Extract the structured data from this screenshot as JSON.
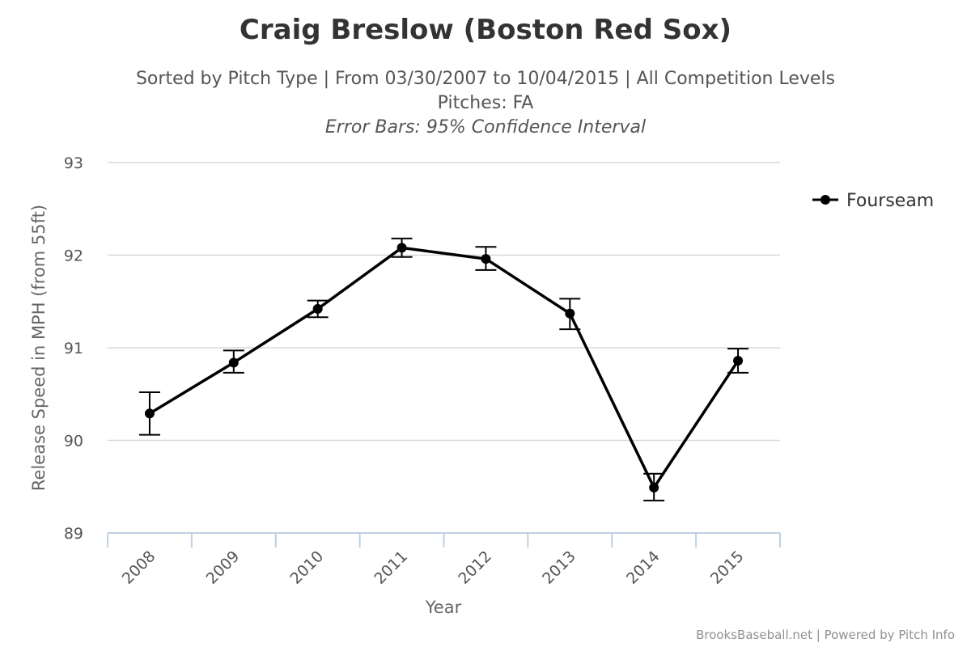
{
  "chart_data": {
    "type": "line",
    "title": "Craig Breslow (Boston Red Sox)",
    "subtitle_lines": [
      "Sorted by Pitch Type | From 03/30/2007 to 10/04/2015 | All Competition Levels",
      "Pitches: FA"
    ],
    "subtitle_note": "Error Bars: 95% Confidence Interval",
    "xlabel": "Year",
    "ylabel": "Release Speed in MPH (from 55ft)",
    "categories": [
      "2008",
      "2009",
      "2010",
      "2011",
      "2012",
      "2013",
      "2014",
      "2015"
    ],
    "ylim": [
      89,
      93
    ],
    "yticks": [
      "89",
      "90",
      "91",
      "92",
      "93"
    ],
    "grid": true,
    "legend_position": "top-right",
    "series": [
      {
        "name": "Fourseam",
        "color": "#000000",
        "values": [
          90.29,
          90.84,
          91.42,
          92.08,
          91.96,
          91.37,
          89.49,
          90.86
        ],
        "error_low": [
          90.06,
          90.73,
          91.33,
          91.98,
          91.84,
          91.2,
          89.35,
          90.73
        ],
        "error_high": [
          90.52,
          90.97,
          91.51,
          92.18,
          92.09,
          91.53,
          89.64,
          90.99
        ]
      }
    ]
  },
  "credits": "BrooksBaseball.net | Powered by Pitch Info"
}
